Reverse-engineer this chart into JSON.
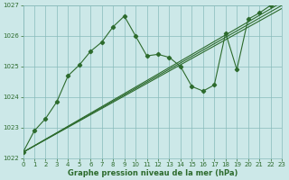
{
  "title": "Graphe pression niveau de la mer (hPa)",
  "background_color": "#cce8e8",
  "grid_color": "#88bbbb",
  "line_color": "#2d6b2d",
  "x_min": 0,
  "x_max": 23,
  "y_min": 1022,
  "y_max": 1027,
  "x_ticks": [
    0,
    1,
    2,
    3,
    4,
    5,
    6,
    7,
    8,
    9,
    10,
    11,
    12,
    13,
    14,
    15,
    16,
    17,
    18,
    19,
    20,
    21,
    22,
    23
  ],
  "y_ticks": [
    1022,
    1023,
    1024,
    1025,
    1026,
    1027
  ],
  "series1_x": [
    0,
    1,
    2,
    3,
    4,
    5,
    6,
    7,
    8,
    9,
    10,
    11,
    12,
    13,
    14,
    15,
    16,
    17,
    18,
    19,
    20,
    21,
    22,
    23
  ],
  "series1_y": [
    1022.2,
    1022.9,
    1023.3,
    1023.85,
    1024.7,
    1025.05,
    1025.5,
    1025.8,
    1026.3,
    1026.65,
    1026.0,
    1025.35,
    1025.4,
    1025.3,
    1025.0,
    1024.35,
    1024.2,
    1024.4,
    1026.1,
    1024.9,
    1026.55,
    1026.75,
    1027.0,
    1027.1
  ],
  "series2_x": [
    0,
    23
  ],
  "series2_y": [
    1022.2,
    1027.1
  ],
  "series3_x": [
    0,
    23
  ],
  "series3_y": [
    1022.2,
    1027.0
  ],
  "series4_x": [
    0,
    23
  ],
  "series4_y": [
    1022.2,
    1026.9
  ]
}
